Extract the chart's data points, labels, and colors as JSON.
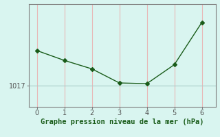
{
  "x": [
    0,
    1,
    2,
    3,
    4,
    5,
    6
  ],
  "y": [
    1019.5,
    1018.8,
    1018.2,
    1017.2,
    1017.15,
    1018.5,
    1021.5
  ],
  "line_color": "#1a5c1a",
  "marker": "D",
  "marker_size": 3,
  "background_color": "#d9f5f0",
  "hgrid_color": "#a8ccc8",
  "vgrid_color": "#e8b8b8",
  "xlabel": "Graphe pression niveau de la mer (hPa)",
  "xlabel_color": "#1a5c1a",
  "xlabel_fontsize": 7.5,
  "ytick_labels": [
    "1017"
  ],
  "ytick_values": [
    1017
  ],
  "xlim": [
    -0.3,
    6.5
  ],
  "ylim": [
    1015.5,
    1022.8
  ],
  "axis_color": "#808080",
  "tick_color": "#505050",
  "tick_fontsize": 7
}
